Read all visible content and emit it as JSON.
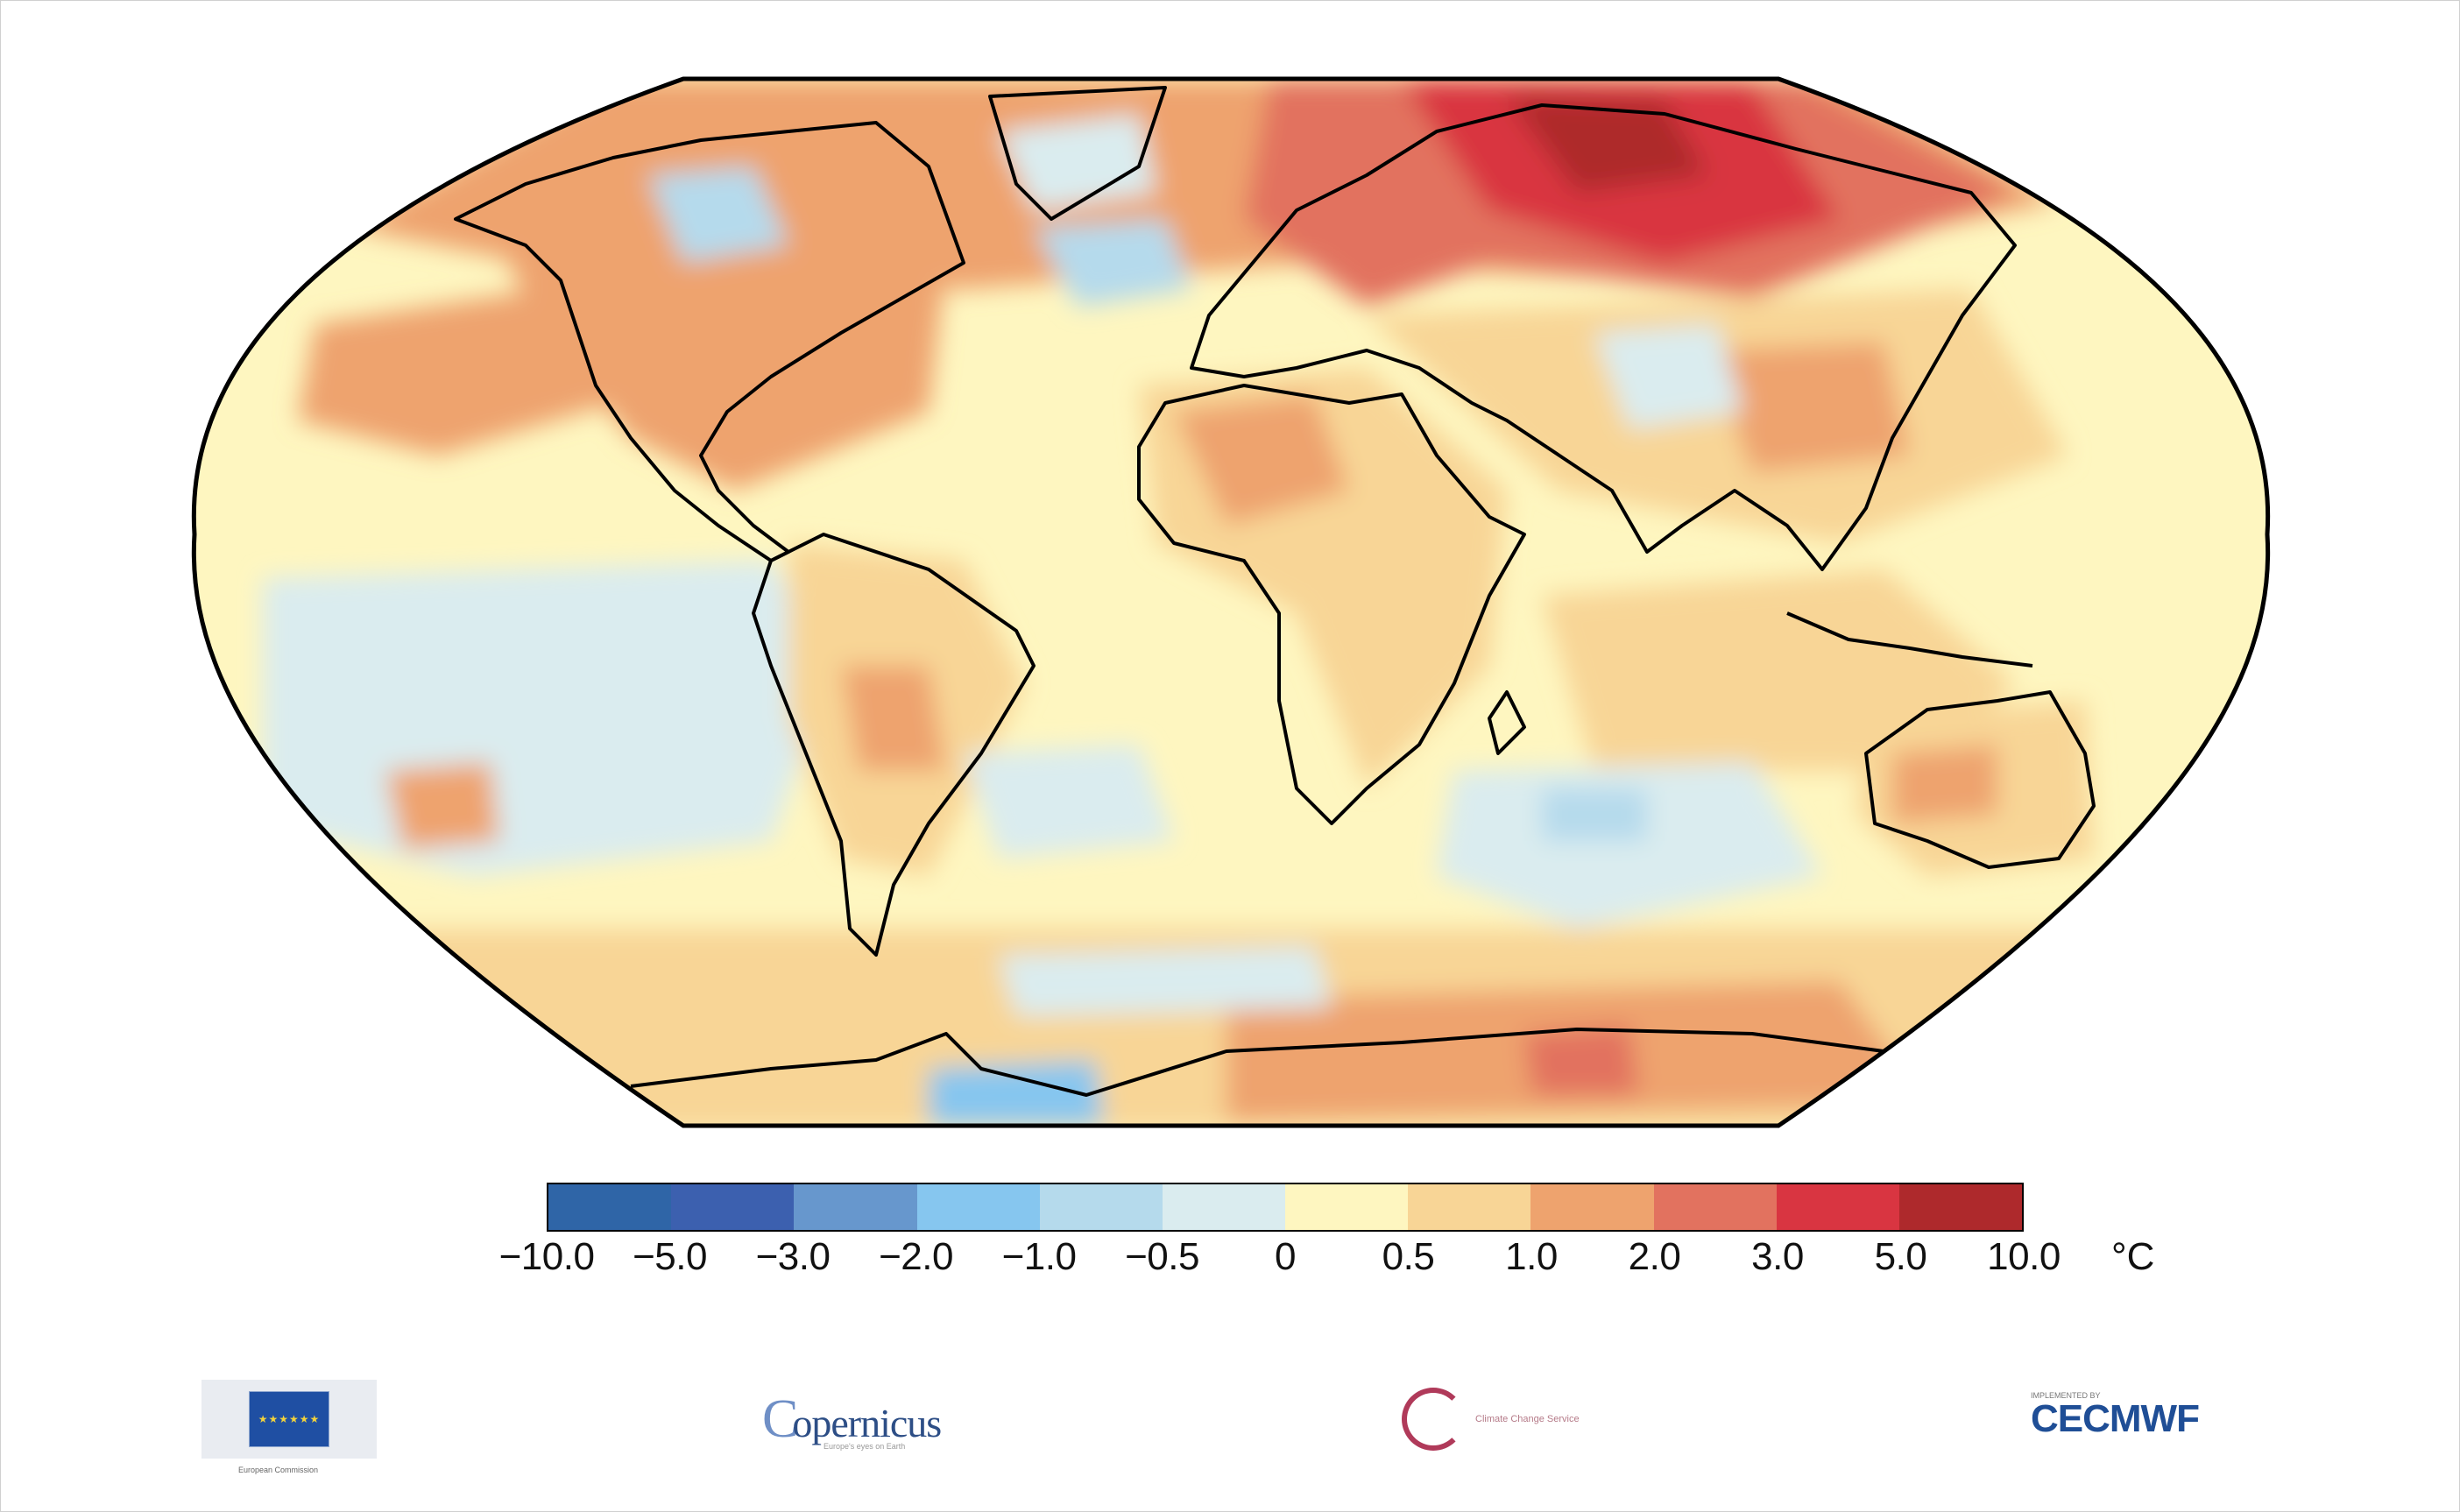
{
  "map": {
    "projection": "Robinson",
    "variable": "temperature anomaly",
    "colors": {
      "background_ocean": "#fef6c0",
      "coast": "#000000",
      "frame": "#000000"
    }
  },
  "colorbar": {
    "colors": [
      "#2f65a7",
      "#3c60af",
      "#6797cd",
      "#86c6ef",
      "#b5daec",
      "#daecef",
      "#fef6c0",
      "#f8d596",
      "#eea36e",
      "#e2725f",
      "#d93541",
      "#ae292c"
    ],
    "ticks": [
      "−10.0",
      "−5.0",
      "−3.0",
      "−2.0",
      "−1.0",
      "−0.5",
      "0",
      "0.5",
      "1.0",
      "2.0",
      "3.0",
      "5.0",
      "10.0"
    ],
    "unit": "°C"
  },
  "logos": {
    "eu": {
      "icon": "eu-flag-icon",
      "caption": "European Commission"
    },
    "copernicus": {
      "text": "opernicus",
      "initial": "C",
      "caption": "Europe's eyes on Earth"
    },
    "c3s": {
      "icon": "c3s-icon",
      "text": "Climate Change Service"
    },
    "ecmwf": {
      "text": "ECMWF",
      "prefix": "C",
      "caption": "IMPLEMENTED BY"
    }
  }
}
